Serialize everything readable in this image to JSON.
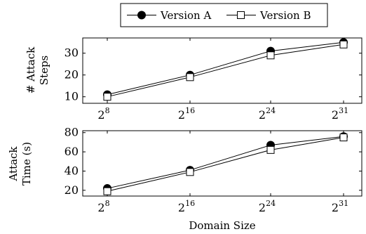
{
  "legend": {
    "items": [
      {
        "label": "Version A",
        "marker": "filled-circle"
      },
      {
        "label": "Version B",
        "marker": "open-square"
      }
    ]
  },
  "shared_xlabel": "Domain Size",
  "chart_data": [
    {
      "type": "line",
      "x": [
        "2^8",
        "2^16",
        "2^24",
        "2^31"
      ],
      "x_tick_base": "2",
      "x_tick_exponents": [
        "8",
        "16",
        "24",
        "31"
      ],
      "ylabel": [
        "# Attack",
        "Steps"
      ],
      "ylim": [
        7,
        37
      ],
      "yticks": [
        10,
        20,
        30
      ],
      "series": [
        {
          "name": "Version A",
          "values": [
            11,
            20,
            31,
            35
          ]
        },
        {
          "name": "Version B",
          "values": [
            10,
            19,
            29,
            34
          ]
        }
      ]
    },
    {
      "type": "line",
      "x": [
        "2^8",
        "2^16",
        "2^24",
        "2^31"
      ],
      "x_tick_base": "2",
      "x_tick_exponents": [
        "8",
        "16",
        "24",
        "31"
      ],
      "ylabel": [
        "Attack",
        "Time (s)"
      ],
      "ylim": [
        14,
        82
      ],
      "yticks": [
        20,
        40,
        60,
        80
      ],
      "series": [
        {
          "name": "Version A",
          "values": [
            22,
            41,
            67,
            76
          ]
        },
        {
          "name": "Version B",
          "values": [
            19,
            39,
            62,
            75
          ]
        }
      ]
    }
  ]
}
